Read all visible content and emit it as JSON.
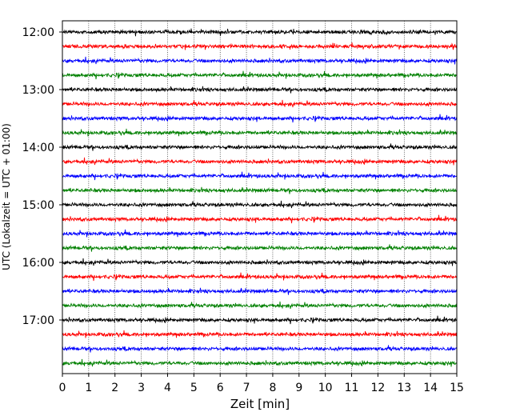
{
  "chart_data": {
    "type": "line",
    "title": "",
    "xlabel": "Zeit  [min]",
    "ylabel": "UTC (Lokalzeit = UTC + 01:00)",
    "xlim": [
      0,
      15
    ],
    "x_ticks": [
      "0",
      "1",
      "2",
      "3",
      "4",
      "5",
      "6",
      "7",
      "8",
      "9",
      "10",
      "11",
      "12",
      "13",
      "14",
      "15"
    ],
    "y_ticks": [
      "12:00",
      "13:00",
      "14:00",
      "15:00",
      "16:00",
      "17:00"
    ],
    "grid_x": true,
    "line_colors": [
      "#000000",
      "#ff0000",
      "#0000ff",
      "#008000"
    ],
    "trace_start_times": [
      "12:00",
      "12:15",
      "12:30",
      "12:45",
      "13:00",
      "13:15",
      "13:30",
      "13:45",
      "14:00",
      "14:15",
      "14:30",
      "14:45",
      "15:00",
      "15:15",
      "15:30",
      "15:45",
      "16:00",
      "16:15",
      "16:30",
      "16:45",
      "17:00",
      "17:15",
      "17:30",
      "17:45"
    ],
    "trace_minutes": 15
  }
}
